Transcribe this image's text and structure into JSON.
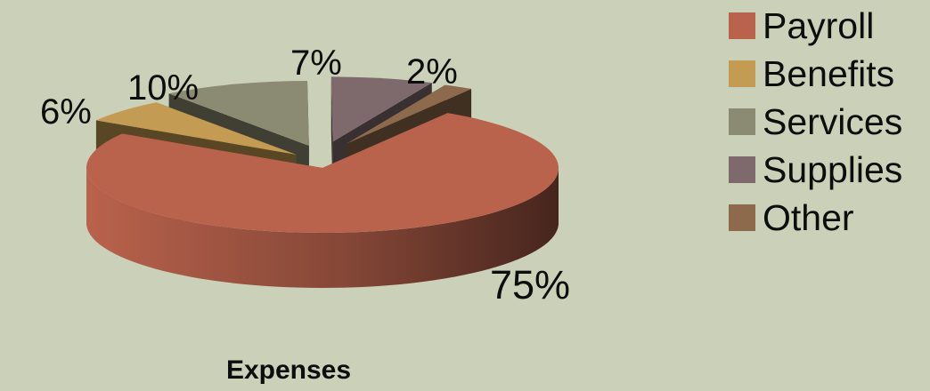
{
  "chart_data": {
    "type": "pie",
    "style": "3d-exploded",
    "caption": "Expenses",
    "categories": [
      "Payroll",
      "Benefits",
      "Services",
      "Supplies",
      "Other"
    ],
    "values": [
      75,
      6,
      10,
      7,
      2
    ],
    "value_labels": [
      "75%",
      "6%",
      "10%",
      "7%",
      "2%"
    ],
    "colors": [
      "#b9624c",
      "#c39b52",
      "#8b8b73",
      "#7e6a6c",
      "#8c6a4b"
    ],
    "legend_position": "right"
  }
}
